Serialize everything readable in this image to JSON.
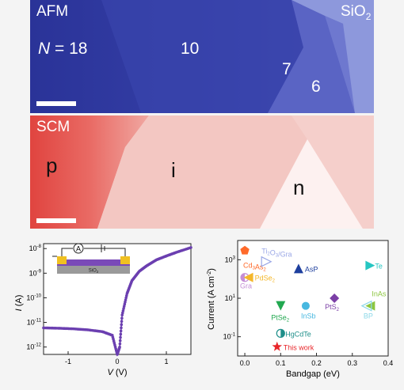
{
  "afm": {
    "label": "AFM",
    "substrate_label": "SiO",
    "substrate_sub": "2",
    "layer_prefix": "N",
    "layer_eq": " = 18",
    "layers": [
      "10",
      "7",
      "6"
    ]
  },
  "scm": {
    "label": "SCM",
    "regions": [
      "p",
      "i",
      "n"
    ]
  },
  "iv_plot": {
    "xlabel_var": "V",
    "xlabel_unit": " (V)",
    "ylabel_var": "I",
    "ylabel_unit": " (A)",
    "x_ticks": [
      "-1",
      "0",
      "1"
    ],
    "y_ticks": [
      {
        "base": "10",
        "exp": "-8"
      },
      {
        "base": "10",
        "exp": "-9"
      },
      {
        "base": "10",
        "exp": "-10"
      },
      {
        "base": "10",
        "exp": "-11"
      },
      {
        "base": "10",
        "exp": "-12"
      }
    ],
    "inset_ammeter": "A",
    "inset_substrate": "SiO",
    "inset_substrate_sub": "2"
  },
  "chart_data": [
    {
      "type": "line",
      "xlabel": "V (V)",
      "ylabel": "I (A)",
      "xlim": [
        -1.5,
        1.5
      ],
      "ylog": true,
      "ylim": [
        1e-12,
        1e-08
      ],
      "series": [
        {
          "x": [
            -1.5,
            -1.2,
            -0.9,
            -0.6,
            -0.3,
            -0.1,
            0.0,
            0.05,
            0.1,
            0.2,
            0.3,
            0.45,
            0.6,
            0.8,
            1.0,
            1.2,
            1.5
          ],
          "y": [
            6e-12,
            5.8e-12,
            5.5e-12,
            5e-12,
            4.2e-12,
            3e-12,
            5e-13,
            1e-12,
            2e-11,
            1.5e-10,
            5e-10,
            1.2e-09,
            2e-09,
            3.5e-09,
            5e-09,
            7e-09,
            1.1e-08
          ]
        }
      ]
    },
    {
      "type": "scatter",
      "xlabel": "Bandgap (eV)",
      "ylabel": "Current (A cm⁻²)",
      "x_ticks": [
        "0.0",
        "0.1",
        "0.2",
        "0.3",
        "0.4"
      ],
      "xlim": [
        -0.02,
        0.4
      ],
      "ylog": true,
      "ylim": [
        0.01,
        10000
      ],
      "y_ticks": [
        {
          "base": "10",
          "exp": "3"
        },
        {
          "base": "10",
          "exp": "1"
        },
        {
          "base": "10",
          "exp": "-1"
        }
      ],
      "points": [
        {
          "name": "Cd",
          "sub1": "3",
          "name2": "As",
          "sub2": "2",
          "x": 0.0,
          "y": 3000,
          "marker": "pentagon",
          "color": "#ff6a2a",
          "label_dx": -2,
          "label_dy": 22
        },
        {
          "name": "Ti",
          "sub1": "2",
          "name2": "O",
          "sub2": "3",
          "name3": "/Gra",
          "x": 0.06,
          "y": 800,
          "marker": "tri-right-open",
          "color": "#9aa7e6",
          "label_dx": -6,
          "label_dy": -10
        },
        {
          "name": "Gra",
          "x": 0.0,
          "y": 120,
          "marker": "half-circle",
          "color": "#c58ed6",
          "label_dx": -6,
          "label_dy": 14
        },
        {
          "name": "PdSe",
          "sub1": "2",
          "x": 0.01,
          "y": 120,
          "marker": "tri-left",
          "color": "#f4b72a",
          "label_dx": 8,
          "label_dy": 4
        },
        {
          "name": "AsP",
          "x": 0.15,
          "y": 350,
          "marker": "tri-up",
          "color": "#1e3f9e",
          "label_dx": 8,
          "label_dy": 4
        },
        {
          "name": "Te",
          "x": 0.35,
          "y": 500,
          "marker": "tri-right",
          "color": "#26c6c2",
          "label_dx": 6,
          "label_dy": 4
        },
        {
          "name": "PtS",
          "sub1": "2",
          "x": 0.25,
          "y": 10,
          "marker": "diamond",
          "color": "#7b3fa6",
          "label_dx": -12,
          "label_dy": 14
        },
        {
          "name": "PtSe",
          "sub1": "2",
          "x": 0.1,
          "y": 4,
          "marker": "tri-down",
          "color": "#22a850",
          "label_dx": -12,
          "label_dy": 18
        },
        {
          "name": "InSb",
          "x": 0.17,
          "y": 4,
          "marker": "circle",
          "color": "#48b8e0",
          "label_dx": -6,
          "label_dy": 16
        },
        {
          "name": "InAs",
          "x": 0.35,
          "y": 4,
          "marker": "tri-left",
          "color": "#8cc63f",
          "label_dx": 2,
          "label_dy": -12
        },
        {
          "name": "BP",
          "x": 0.34,
          "y": 4,
          "marker": "tri-left-open",
          "color": "#8cd8e8",
          "label_dx": -4,
          "label_dy": 16
        },
        {
          "name": "HgCdTe",
          "x": 0.1,
          "y": 0.15,
          "marker": "half-circle-teal",
          "color": "#1f8f8a",
          "label_dx": 6,
          "label_dy": 4
        },
        {
          "name": "This work",
          "x": 0.09,
          "y": 0.03,
          "marker": "star",
          "color": "#e8262a",
          "label_dx": 8,
          "label_dy": 4
        }
      ]
    }
  ]
}
